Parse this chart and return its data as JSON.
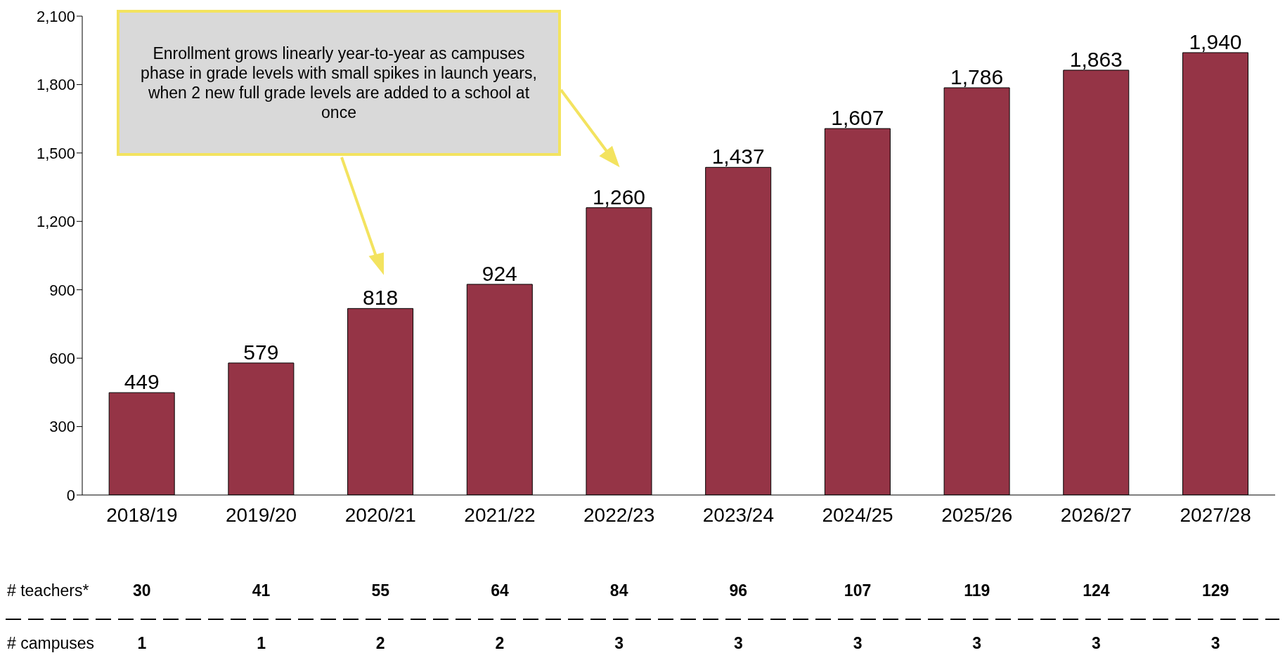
{
  "chart_data": {
    "type": "bar",
    "categories": [
      "2018/19",
      "2019/20",
      "2020/21",
      "2021/22",
      "2022/23",
      "2023/24",
      "2024/25",
      "2025/26",
      "2026/27",
      "2027/28"
    ],
    "series": [
      {
        "color": "#953446",
        "values": [
          449,
          579,
          818,
          924,
          1260,
          1437,
          1607,
          1786,
          1863,
          1940
        ],
        "value_labels": [
          "449",
          "579",
          "818",
          "924",
          "1,260",
          "1,437",
          "1,607",
          "1,786",
          "1,863",
          "1,940"
        ]
      }
    ],
    "ylim": [
      0,
      2100
    ],
    "yticks": [
      0,
      300,
      600,
      900,
      {
        "value": 1200,
        "label": "1,200"
      },
      {
        "value": 1500,
        "label": "1,500"
      },
      {
        "value": 1800,
        "label": "1,800"
      },
      {
        "value": 2100,
        "label": "2,100"
      }
    ],
    "grid": false,
    "legend": false,
    "annotations": [
      "Enrollment grows linearly year-to-year as campuses phase in grade levels with small spikes in launch years, when 2 new full grade levels are added to a school at once",
      "# teachers*",
      "30",
      "41",
      "55",
      "64",
      "84",
      "96",
      "107",
      "119",
      "124",
      "129",
      "# campuses",
      "1",
      "1",
      "2",
      "2",
      "3",
      "3",
      "3",
      "3",
      "3",
      "3"
    ]
  }
}
